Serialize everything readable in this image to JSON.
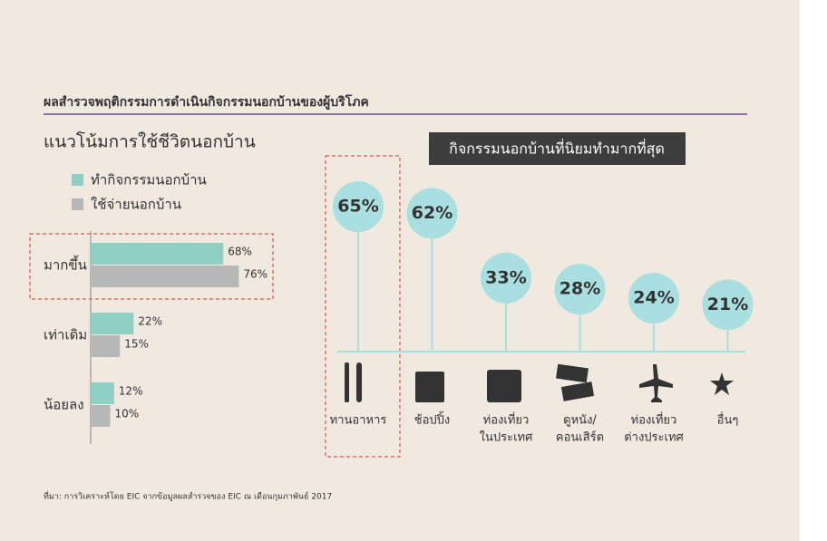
{
  "header": {
    "title": "ผลสำรวจพฤติกรรมการดำเนินกิจกรรมนอกบ้านของผู้บริโภค"
  },
  "footer": {
    "source": "ที่มา: การวิเคราะห์โดย EIC จากข้อมูลผลสำรวจของ EIC ณ เดือนกุมภาพันธ์ 2017"
  },
  "chart_data": [
    {
      "type": "hbar",
      "title": "แนวโน้มการใช้ชีวิตนอกบ้าน",
      "categories": [
        "มากขึ้น",
        "เท่าเดิม",
        "น้อยลง"
      ],
      "series": [
        {
          "name": "ทำกิจกรรมนอกบ้าน",
          "color": "#8fcfc4",
          "values": [
            68,
            22,
            12
          ],
          "value_labels": [
            "68%",
            "22%",
            "12%"
          ]
        },
        {
          "name": "ใช้จ่ายนอกบ้าน",
          "color": "#b7b7b7",
          "values": [
            76,
            15,
            10
          ],
          "value_labels": [
            "76%",
            "15%",
            "10%"
          ]
        }
      ]
    },
    {
      "type": "lollipop",
      "title": "กิจกรรมนอกบ้านที่นิยมทำมากที่สุด",
      "categories": [
        [
          "ทานอาหาร"
        ],
        [
          "ช้อปปิ้ง"
        ],
        [
          "ท่องเที่ยว",
          "ในประเทศ"
        ],
        [
          "ดูหนัง/",
          "คอนเสิร์ต"
        ],
        [
          "ท่องเที่ยว",
          "ต่างประเทศ"
        ],
        [
          "อื่นๆ"
        ]
      ],
      "color": "#a9dfe0",
      "values": [
        65,
        62,
        33,
        28,
        24,
        21
      ],
      "value_labels": [
        "65%",
        "62%",
        "33%",
        "28%",
        "24%",
        "21%"
      ]
    }
  ]
}
